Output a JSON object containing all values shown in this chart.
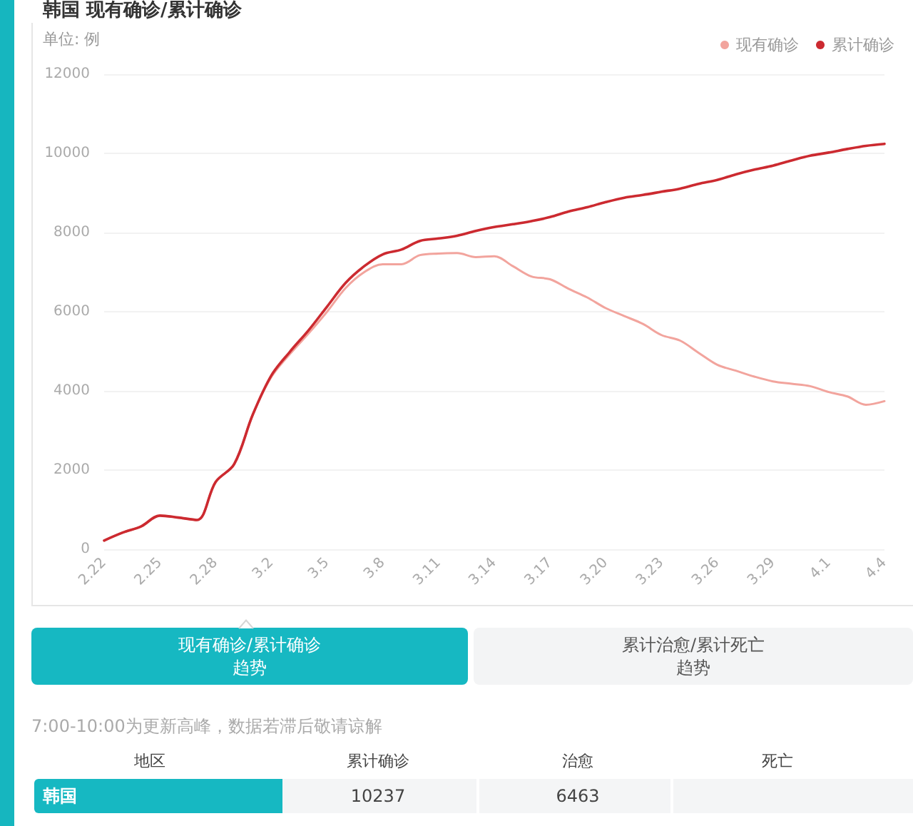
{
  "chart_data": {
    "type": "line",
    "title": "韩国 现有确诊/累计确诊",
    "annotations": [
      "单位: 例",
      "现有确诊/累计确诊",
      "趋势",
      "累计治愈/累计死亡",
      "趋势",
      "7:00-10:00为更新高峰，数据若滞后敬请谅解",
      "地区",
      "累计确诊",
      "治愈",
      "死亡",
      "韩国",
      "10237",
      "6463"
    ],
    "categories": [
      "2.22",
      null,
      null,
      "2.25",
      null,
      null,
      "2.28",
      null,
      null,
      "3.2",
      null,
      null,
      "3.5",
      null,
      null,
      "3.8",
      null,
      null,
      "3.11",
      null,
      null,
      "3.14",
      null,
      null,
      "3.17",
      null,
      null,
      "3.20",
      null,
      null,
      "3.23",
      null,
      null,
      "3.26",
      null,
      null,
      "3.29",
      null,
      null,
      "4.1",
      null,
      null,
      "4.4"
    ],
    "series": [
      {
        "name": "现有确诊",
        "color": "#f2a49d",
        "values": [
          220,
          420,
          580,
          850,
          800,
          740,
          1700,
          2150,
          3400,
          4350,
          4930,
          5450,
          6000,
          6600,
          7000,
          7200,
          7200,
          7430,
          7470,
          7480,
          7380,
          7400,
          7150,
          6890,
          6820,
          6580,
          6360,
          6090,
          5890,
          5690,
          5410,
          5270,
          4960,
          4660,
          4510,
          4360,
          4240,
          4180,
          4120,
          3970,
          3860,
          3650,
          3740
        ]
      },
      {
        "name": "累计确诊",
        "color": "#cc2a30",
        "values": [
          220,
          420,
          580,
          850,
          800,
          740,
          1700,
          2150,
          3400,
          4390,
          4990,
          5530,
          6130,
          6730,
          7150,
          7450,
          7570,
          7790,
          7850,
          7920,
          8040,
          8140,
          8210,
          8290,
          8390,
          8530,
          8640,
          8770,
          8880,
          8950,
          9030,
          9110,
          9230,
          9330,
          9470,
          9590,
          9690,
          9820,
          9940,
          10020,
          10110,
          10190,
          10240
        ]
      }
    ],
    "ylim": [
      0,
      12000
    ],
    "yticks": [
      0,
      2000,
      4000,
      6000,
      8000,
      10000,
      12000
    ],
    "grid": "y",
    "legend": "top right",
    "marker": "none"
  }
}
